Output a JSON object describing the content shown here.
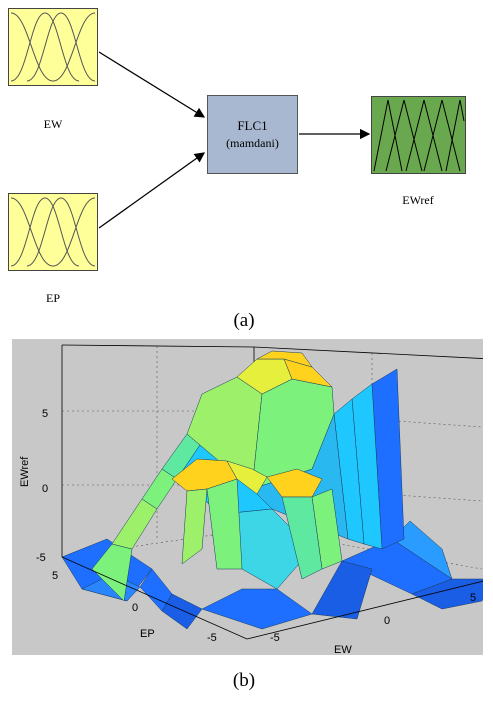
{
  "diagram_a": {
    "inputs": [
      {
        "id": "ew",
        "label": "EW"
      },
      {
        "id": "ep",
        "label": "EP"
      }
    ],
    "system": {
      "name": "FLC1",
      "type": "(mamdani)"
    },
    "output": {
      "label": "EWref"
    },
    "caption": "(a)",
    "colors": {
      "input_fill": "#ffff99",
      "system_fill": "#a8b8d0",
      "output_fill": "#6aa84f"
    }
  },
  "chart_data": {
    "type": "surface",
    "caption": "(b)",
    "zlabel": "EWref",
    "xlabel": "EW",
    "ylabel": "EP",
    "z_ticks": [
      "5",
      "0",
      "-5"
    ],
    "x_ticks": [
      "-5",
      "0",
      "5"
    ],
    "y_ticks": [
      "5",
      "0",
      "-5"
    ],
    "xlim": [
      -7,
      7
    ],
    "ylim": [
      -7,
      7
    ],
    "zlim": [
      -6,
      6
    ],
    "grid": true,
    "colormap": [
      "#1e6fff",
      "#1ec8ff",
      "#7cf27c",
      "#e6f03c",
      "#ffd21e"
    ]
  }
}
